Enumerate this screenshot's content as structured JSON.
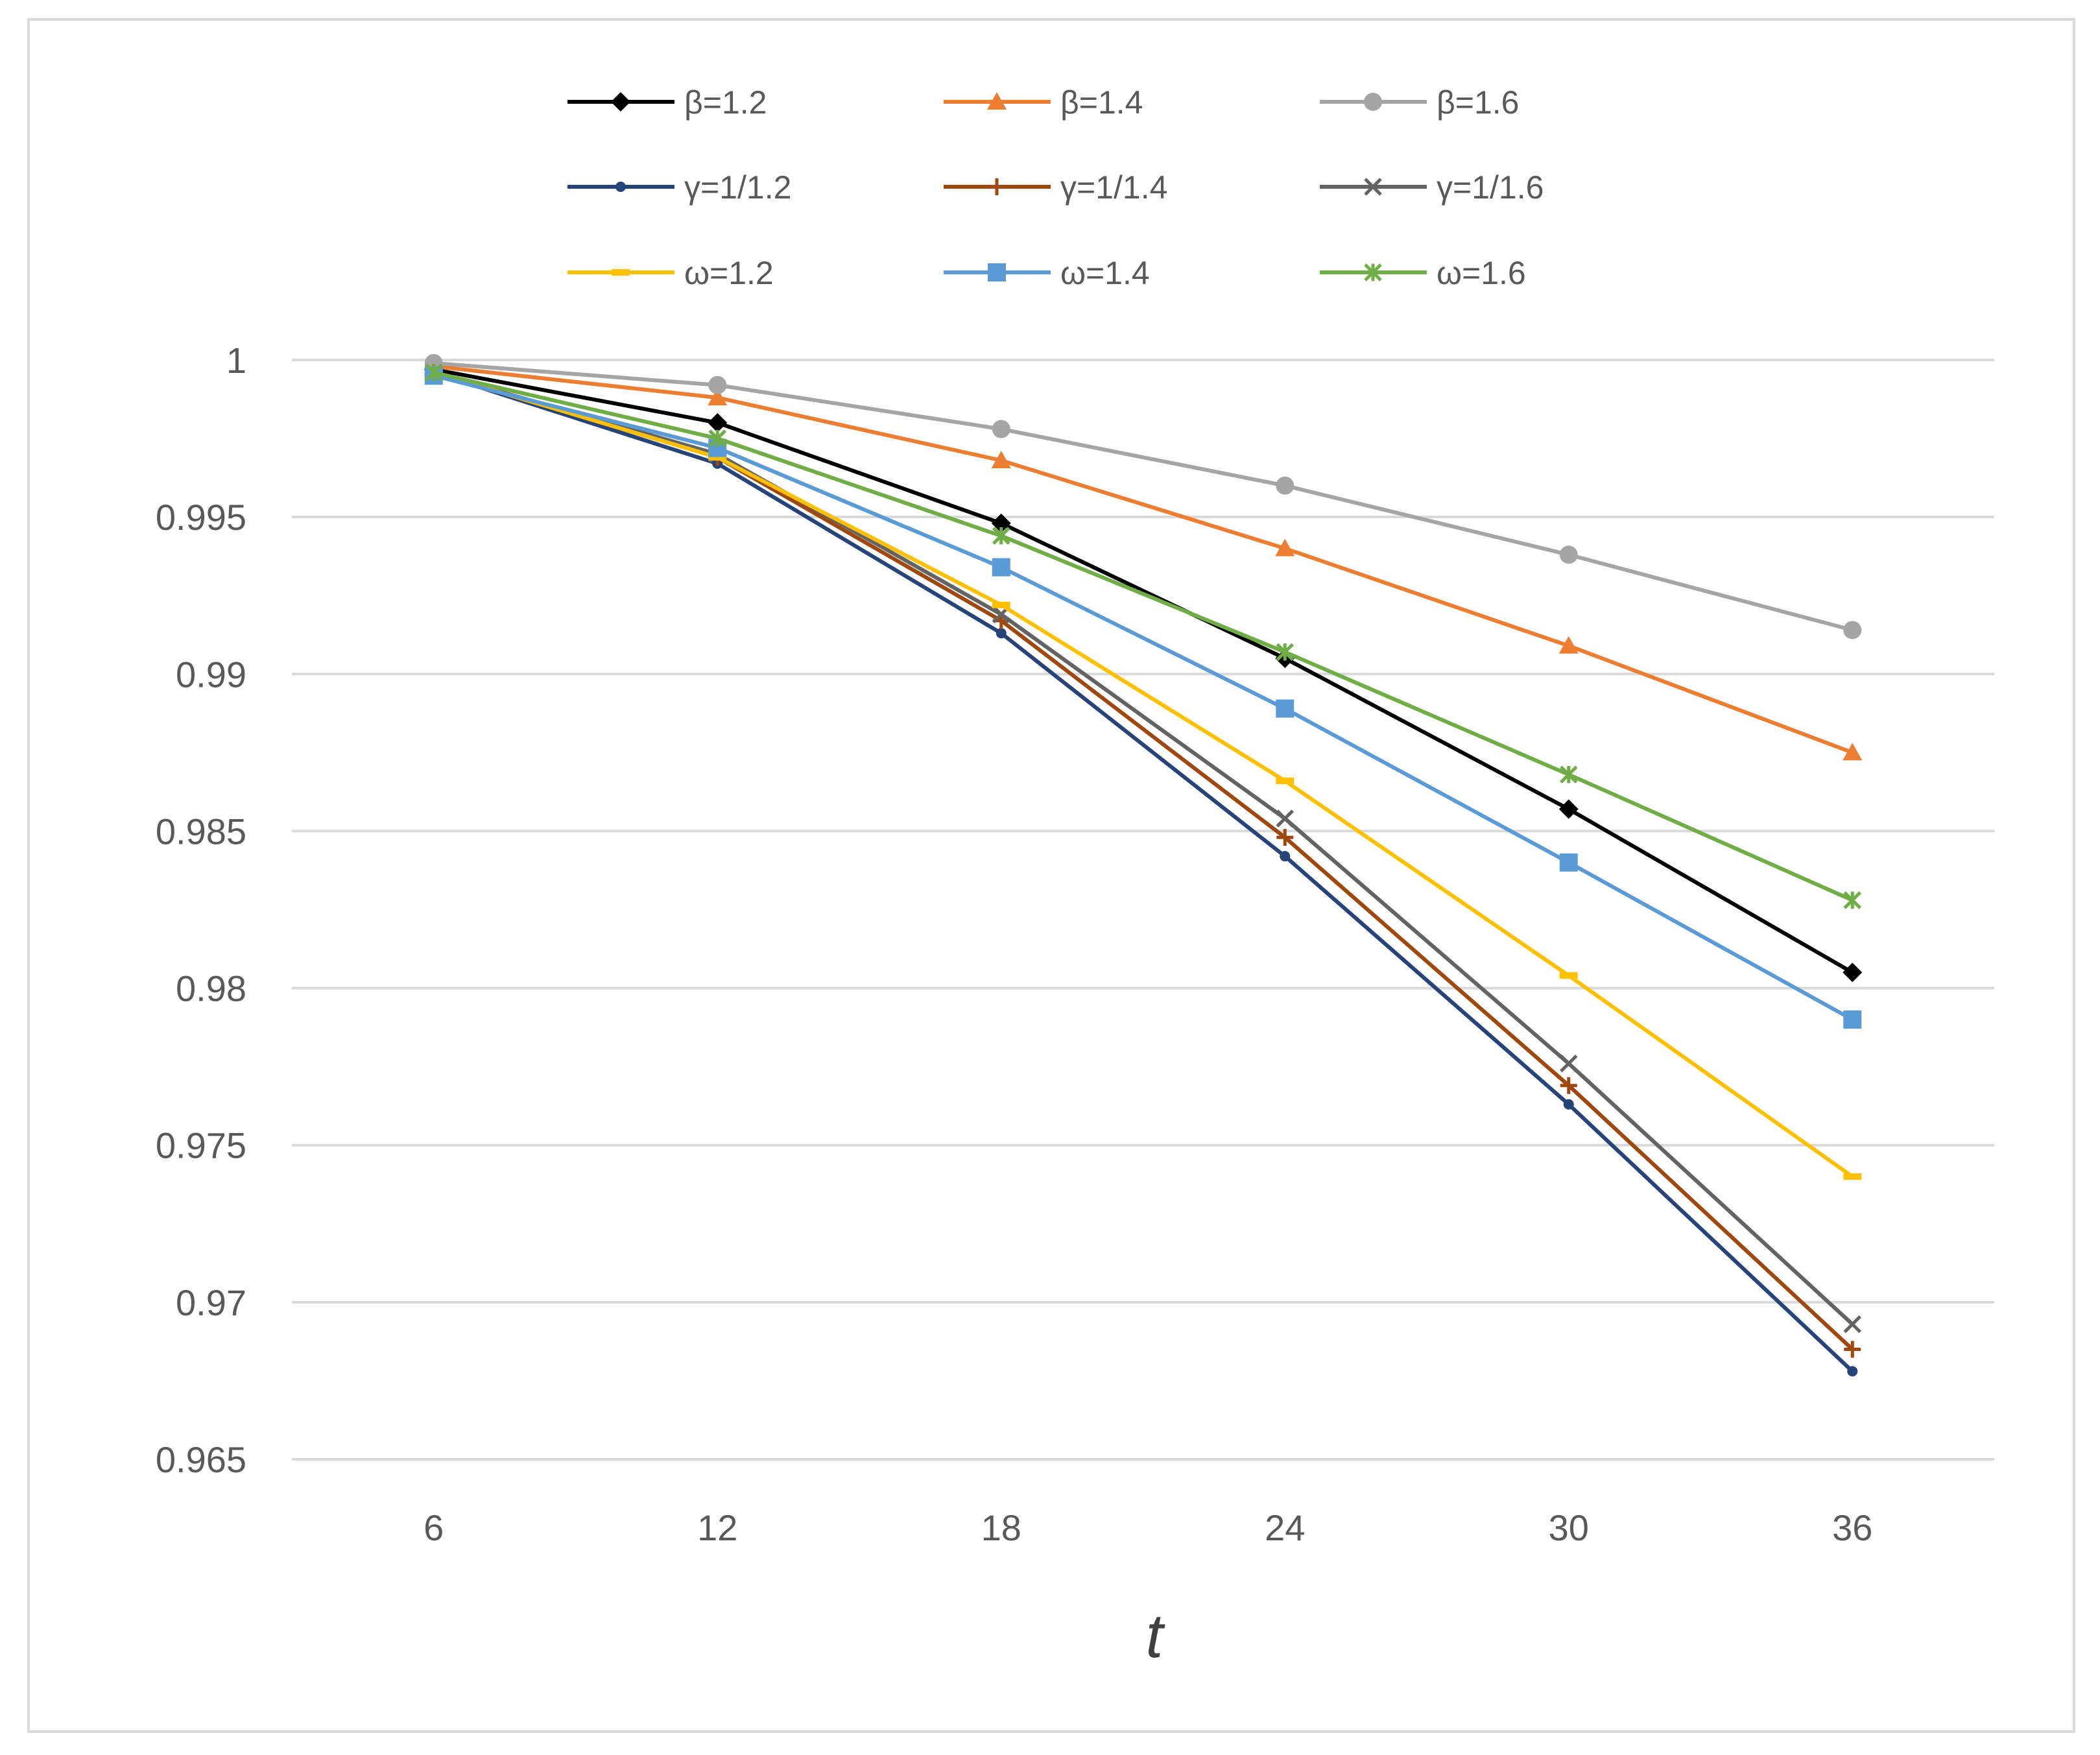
{
  "chart_data": {
    "type": "line",
    "title": "",
    "xlabel": "t",
    "ylabel": "",
    "categories": [
      "6",
      "12",
      "18",
      "24",
      "30",
      "36"
    ],
    "x": [
      6,
      12,
      18,
      24,
      30,
      36
    ],
    "ylim": [
      0.965,
      1.0
    ],
    "yticks": [
      1,
      0.995,
      0.99,
      0.985,
      0.98,
      0.975,
      0.97,
      0.965
    ],
    "ytick_labels": [
      "1",
      "0.995",
      "0.99",
      "0.985",
      "0.98",
      "0.975",
      "0.97",
      "0.965"
    ],
    "grid": true,
    "legend_position": "top",
    "series": [
      {
        "name": "β=1.2",
        "color": "#000000",
        "marker": "diamond",
        "values": [
          0.9997,
          0.998,
          0.9948,
          0.9905,
          0.9857,
          0.9805
        ]
      },
      {
        "name": "β=1.4",
        "color": "#ED7D31",
        "marker": "triangle",
        "values": [
          0.9998,
          0.9988,
          0.9968,
          0.994,
          0.9909,
          0.9875
        ]
      },
      {
        "name": "β=1.6",
        "color": "#A5A5A5",
        "marker": "circle",
        "values": [
          0.9999,
          0.9992,
          0.9978,
          0.996,
          0.9938,
          0.9914
        ]
      },
      {
        "name": "γ=1/1.2",
        "color": "#264478",
        "marker": "dot",
        "values": [
          0.9996,
          0.9967,
          0.9913,
          0.9842,
          0.9763,
          0.9678
        ]
      },
      {
        "name": "γ=1/1.4",
        "color": "#9E480E",
        "marker": "plus",
        "values": [
          0.9996,
          0.9969,
          0.9917,
          0.9848,
          0.9769,
          0.9685
        ]
      },
      {
        "name": "γ=1/1.6",
        "color": "#636363",
        "marker": "x",
        "values": [
          0.9996,
          0.997,
          0.9919,
          0.9854,
          0.9776,
          0.9693
        ]
      },
      {
        "name": "ω=1.2",
        "color": "#FFC000",
        "marker": "dash",
        "values": [
          0.9996,
          0.9969,
          0.9922,
          0.9866,
          0.9804,
          0.974
        ]
      },
      {
        "name": "ω=1.4",
        "color": "#5B9BD5",
        "marker": "square",
        "values": [
          0.9995,
          0.9972,
          0.9934,
          0.9889,
          0.984,
          0.979
        ]
      },
      {
        "name": "ω=1.6",
        "color": "#70AD47",
        "marker": "asterisk",
        "values": [
          0.9996,
          0.9975,
          0.9944,
          0.9907,
          0.9868,
          0.9828
        ]
      }
    ]
  }
}
